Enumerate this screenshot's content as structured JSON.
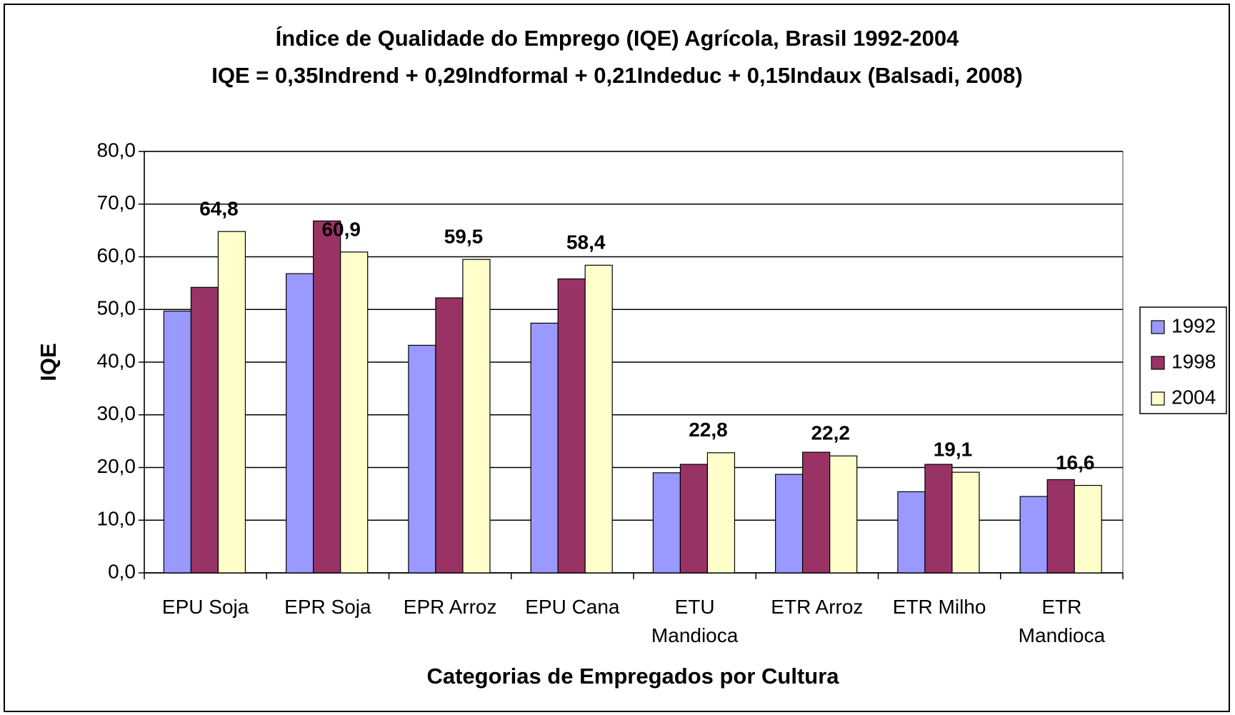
{
  "chart_data": {
    "type": "bar",
    "title": "Índice de Qualidade do Emprego (IQE) Agrícola, Brasil 1992-2004",
    "subtitle": "IQE = 0,35Indrend + 0,29Indformal + 0,21Indeduc + 0,15Indaux (Balsadi, 2008)",
    "x_label": "Categorias de Empregados por Cultura",
    "y_label": "IQE",
    "categories": [
      "EPU Soja",
      "EPR Soja",
      "EPR Arroz",
      "EPU Cana",
      "ETU Mandioca",
      "ETR Arroz",
      "ETR Milho",
      "ETR Mandioca"
    ],
    "series": [
      {
        "name": "1992",
        "color": "#9999ff",
        "values": [
          49.7,
          56.8,
          43.2,
          47.4,
          19.0,
          18.7,
          15.4,
          14.5
        ]
      },
      {
        "name": "1998",
        "color": "#993366",
        "values": [
          54.2,
          66.8,
          52.2,
          55.8,
          20.6,
          22.9,
          20.6,
          17.7
        ]
      },
      {
        "name": "2004",
        "color": "#ffffcc",
        "values": [
          64.8,
          60.9,
          59.5,
          58.4,
          22.8,
          22.2,
          19.1,
          16.6
        ],
        "value_labels": [
          "64,8",
          "60,9",
          "59,5",
          "58,4",
          "22,8",
          "22,2",
          "19,1",
          "16,6"
        ]
      }
    ],
    "ylim": [
      0,
      80
    ],
    "yticks": [
      {
        "value": 0,
        "label": "0,0"
      },
      {
        "value": 10,
        "label": "10,0"
      },
      {
        "value": 20,
        "label": "20,0"
      },
      {
        "value": 30,
        "label": "30,0"
      },
      {
        "value": 40,
        "label": "40,0"
      },
      {
        "value": 50,
        "label": "50,0"
      },
      {
        "value": 60,
        "label": "60,0"
      },
      {
        "value": 70,
        "label": "70,0"
      },
      {
        "value": 80,
        "label": "80,0"
      }
    ],
    "grid": true,
    "legend": "right"
  }
}
